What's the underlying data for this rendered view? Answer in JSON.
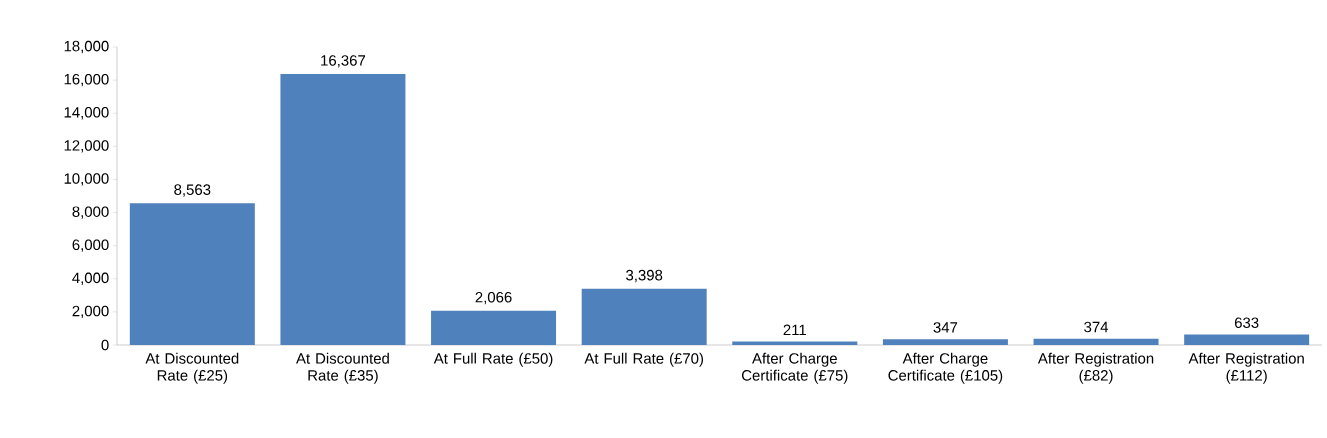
{
  "chart_data": {
    "type": "bar",
    "categories": [
      "At Discounted Rate (£25)",
      "At Discounted Rate (£35)",
      "At Full Rate (£50)",
      "At Full Rate (£70)",
      "After Charge Certificate (£75)",
      "After Charge Certificate (£105)",
      "After Registration (£82)",
      "After Registration (£112)"
    ],
    "values": [
      8563,
      16367,
      2066,
      3398,
      211,
      347,
      374,
      633
    ],
    "value_labels": [
      "8,563",
      "16,367",
      "2,066",
      "3,398",
      "211",
      "347",
      "374",
      "633"
    ],
    "color": "#4f81bd",
    "ylim": [
      0,
      18000
    ],
    "yticks": [
      {
        "value": 0,
        "label": "0"
      },
      {
        "value": 2000,
        "label": "2,000"
      },
      {
        "value": 4000,
        "label": "4,000"
      },
      {
        "value": 6000,
        "label": "6,000"
      },
      {
        "value": 8000,
        "label": "8,000"
      },
      {
        "value": 10000,
        "label": "10,000"
      },
      {
        "value": 12000,
        "label": "12,000"
      },
      {
        "value": 14000,
        "label": "14,000"
      },
      {
        "value": 16000,
        "label": "16,000"
      },
      {
        "value": 18000,
        "label": "18,000"
      }
    ]
  }
}
